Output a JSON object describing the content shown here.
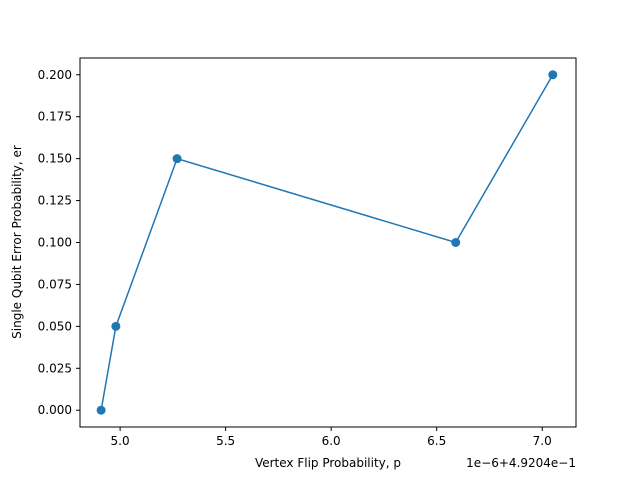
{
  "chart_data": {
    "type": "line",
    "title": "",
    "xlabel": "Vertex Flip Probability, p",
    "ylabel": "Single Qubit Error Probability, er",
    "x_offset_text": "1e−6+4.9204e−1",
    "x_tick_labels": [
      "5.0",
      "5.5",
      "6.0",
      "6.5",
      "7.0"
    ],
    "y_tick_labels": [
      "0.000",
      "0.025",
      "0.050",
      "0.075",
      "0.100",
      "0.125",
      "0.150",
      "0.175",
      "0.200"
    ],
    "x_tick_values": [
      5.0,
      5.5,
      6.0,
      6.5,
      7.0
    ],
    "y_tick_values": [
      0.0,
      0.025,
      0.05,
      0.075,
      0.1,
      0.125,
      0.15,
      0.175,
      0.2
    ],
    "xlim": [
      4.81,
      7.16
    ],
    "ylim": [
      -0.01,
      0.21
    ],
    "grid": false,
    "series": [
      {
        "color": "#1f77b4",
        "marker": "circle",
        "x": [
          4.91,
          4.98,
          5.27,
          6.59,
          7.05
        ],
        "y": [
          0.0,
          0.05,
          0.15,
          0.1,
          0.2
        ]
      }
    ]
  }
}
